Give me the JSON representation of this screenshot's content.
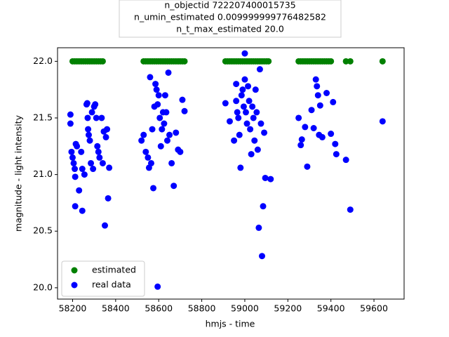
{
  "chart_data": {
    "type": "scatter",
    "title": [
      "n_objectid 722207400015735",
      "n_umin_estimated 0.009999999776482582",
      "n_t_max_estimated 20.0"
    ],
    "x_label": "hmjs - time",
    "y_label": "magnitude - light intensity",
    "xlim": [
      58130,
      59740
    ],
    "ylim": [
      19.9,
      22.12
    ],
    "xticks": [
      58200,
      58400,
      58600,
      58800,
      59000,
      59200,
      59400,
      59600
    ],
    "yticks": [
      {
        "value": 20,
        "label": "20.0"
      },
      {
        "value": 20.5,
        "label": "20.5"
      },
      {
        "value": 21,
        "label": "21.0"
      },
      {
        "value": 21.5,
        "label": "21.5"
      },
      {
        "value": 22,
        "label": "22.0"
      }
    ],
    "legend": "lower left",
    "series": [
      {
        "name": "estimated",
        "color": "green",
        "x": [
          58200,
          58210,
          58220,
          58230,
          58240,
          58250,
          58260,
          58270,
          58280,
          58290,
          58300,
          58310,
          58320,
          58330,
          58340,
          58530,
          58540,
          58550,
          58560,
          58570,
          58580,
          58590,
          58600,
          58610,
          58620,
          58630,
          58640,
          58650,
          58660,
          58670,
          58680,
          58690,
          58700,
          58710,
          58720,
          58910,
          58920,
          58930,
          58940,
          58950,
          58960,
          58970,
          58980,
          58990,
          59000,
          59010,
          59020,
          59030,
          59040,
          59050,
          59060,
          59070,
          59080,
          59090,
          59100,
          59110,
          59250,
          59260,
          59270,
          59280,
          59290,
          59300,
          59310,
          59320,
          59330,
          59340,
          59350,
          59360,
          59370,
          59380,
          59390,
          59400,
          59470,
          59490,
          59640
        ],
        "values": [
          22,
          22,
          22,
          22,
          22,
          22,
          22,
          22,
          22,
          22,
          22,
          22,
          22,
          22,
          22,
          22,
          22,
          22,
          22,
          22,
          22,
          22,
          22,
          22,
          22,
          22,
          22,
          22,
          22,
          22,
          22,
          22,
          22,
          22,
          22,
          22,
          22,
          22,
          22,
          22,
          22,
          22,
          22,
          22,
          22,
          22,
          22,
          22,
          22,
          22,
          22,
          22,
          22,
          22,
          22,
          22,
          22,
          22,
          22,
          22,
          22,
          22,
          22,
          22,
          22,
          22,
          22,
          22,
          22,
          22,
          22,
          22,
          22,
          22,
          22
        ]
      },
      {
        "name": "real data",
        "color": "blue",
        "x": [
          58190,
          58190,
          58195,
          58200,
          58205,
          58210,
          58212,
          58215,
          58212,
          58220,
          58230,
          58240,
          58245,
          58245,
          58255,
          58265,
          58268,
          58270,
          58272,
          58275,
          58280,
          58285,
          58290,
          58295,
          58300,
          58305,
          58310,
          58315,
          58320,
          58325,
          58335,
          58340,
          58345,
          58350,
          58355,
          58360,
          58365,
          58370,
          58520,
          58530,
          58540,
          58550,
          58555,
          58560,
          58565,
          58570,
          58575,
          58580,
          58585,
          58590,
          58595,
          58600,
          58605,
          58595,
          58610,
          58615,
          58620,
          58625,
          58630,
          58635,
          58640,
          58645,
          58650,
          58660,
          58670,
          58680,
          58690,
          58700,
          58710,
          58720,
          58910,
          58930,
          58950,
          58960,
          58960,
          58965,
          58970,
          58975,
          58980,
          58985,
          58990,
          58995,
          59000,
          59000,
          59005,
          59010,
          59015,
          59020,
          59025,
          59030,
          59035,
          59040,
          59045,
          59050,
          59055,
          59060,
          59065,
          59070,
          59075,
          59080,
          59085,
          59090,
          59095,
          59120,
          59250,
          59260,
          59265,
          59280,
          59290,
          59310,
          59320,
          59330,
          59335,
          59340,
          59345,
          59350,
          59360,
          59380,
          59400,
          59410,
          59420,
          59425,
          59470,
          59490,
          59640
        ],
        "values": [
          21.53,
          21.45,
          21.2,
          21.15,
          21.1,
          21.05,
          20.98,
          21.27,
          20.72,
          21.25,
          20.86,
          21.2,
          21.05,
          20.68,
          21.0,
          21.62,
          21.63,
          21.5,
          21.4,
          21.35,
          21.3,
          21.1,
          21.55,
          21.05,
          21.6,
          21.62,
          21.5,
          21.25,
          21.2,
          21.15,
          21.5,
          21.1,
          21.38,
          20.55,
          21.33,
          21.4,
          20.79,
          21.06,
          21.3,
          21.35,
          21.2,
          21.15,
          21.06,
          21.86,
          21.1,
          21.4,
          20.88,
          21.6,
          21.8,
          21.75,
          21.62,
          21.7,
          21.5,
          20.01,
          21.25,
          21.4,
          21.55,
          21.45,
          21.7,
          21.55,
          21.3,
          21.9,
          21.35,
          21.1,
          20.9,
          21.37,
          21.22,
          21.2,
          21.66,
          21.56,
          21.63,
          21.47,
          21.3,
          21.8,
          21.65,
          21.55,
          21.5,
          21.35,
          21.06,
          21.7,
          21.75,
          21.6,
          22.07,
          21.84,
          21.55,
          21.45,
          21.78,
          21.65,
          21.4,
          21.18,
          21.6,
          21.5,
          21.3,
          21.75,
          21.55,
          21.22,
          20.53,
          21.93,
          21.45,
          20.28,
          20.72,
          21.37,
          20.97,
          20.96,
          21.5,
          21.26,
          21.31,
          21.42,
          21.07,
          21.57,
          21.41,
          21.84,
          21.78,
          21.7,
          21.35,
          21.61,
          21.33,
          21.72,
          21.36,
          21.64,
          21.27,
          21.18,
          21.13,
          20.69,
          21.47
        ]
      }
    ]
  }
}
